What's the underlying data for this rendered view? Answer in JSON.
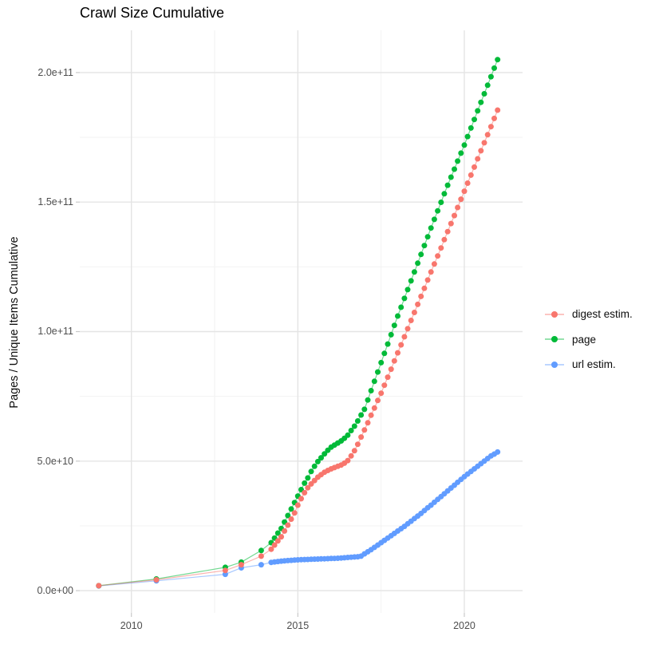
{
  "chart_data": {
    "type": "scatter",
    "title": "Crawl Size Cumulative",
    "xlabel": "",
    "ylabel": "Pages / Unique Items Cumulative",
    "y_unit": "items, values stored as multiples of 1e9",
    "grid": "on",
    "legend_position": "right",
    "x_axis": {
      "lim": [
        2008.45,
        2021.75
      ],
      "ticks": [
        {
          "year": 2010,
          "label": "2010"
        },
        {
          "year": 2015,
          "label": "2015"
        },
        {
          "year": 2020,
          "label": "2020"
        }
      ],
      "minor_years": [
        2012.5,
        2017.5
      ]
    },
    "y_axis": {
      "lim_e9": [
        -8.6,
        216.3
      ],
      "ticks": [
        {
          "value_e9": 0,
          "label": "0.0e+00"
        },
        {
          "value_e9": 50,
          "label": "5.0e+10"
        },
        {
          "value_e9": 100,
          "label": "1.0e+11"
        },
        {
          "value_e9": 150,
          "label": "1.5e+11"
        },
        {
          "value_e9": 200,
          "label": "2.0e+11"
        }
      ],
      "minor_values_e9": [
        25,
        75,
        125,
        175
      ]
    },
    "draw_order": [
      "url estim.",
      "page",
      "digest estim."
    ],
    "series": [
      {
        "name": "digest estim.",
        "color": "#F8766D",
        "points_e9": [
          [
            2009.02,
            1.9
          ],
          [
            2010.75,
            4.2
          ],
          [
            2012.82,
            7.8
          ],
          [
            2013.3,
            10.0
          ],
          [
            2013.9,
            13.3
          ],
          [
            2014.2,
            16.0
          ],
          [
            2014.3,
            17.6
          ],
          [
            2014.4,
            19.2
          ],
          [
            2014.5,
            20.8
          ],
          [
            2014.6,
            23.0
          ],
          [
            2014.7,
            25.3
          ],
          [
            2014.8,
            27.6
          ],
          [
            2014.9,
            30.0
          ],
          [
            2015.0,
            33.0
          ],
          [
            2015.1,
            35.5
          ],
          [
            2015.2,
            37.8
          ],
          [
            2015.3,
            39.7
          ],
          [
            2015.4,
            41.2
          ],
          [
            2015.5,
            42.5
          ],
          [
            2015.6,
            43.8
          ],
          [
            2015.7,
            44.8
          ],
          [
            2015.8,
            45.7
          ],
          [
            2015.9,
            46.4
          ],
          [
            2016.0,
            47.0
          ],
          [
            2016.1,
            47.5
          ],
          [
            2016.2,
            48.0
          ],
          [
            2016.3,
            48.5
          ],
          [
            2016.4,
            49.2
          ],
          [
            2016.5,
            50.2
          ],
          [
            2016.6,
            52.0
          ],
          [
            2016.7,
            54.0
          ],
          [
            2016.8,
            56.5
          ],
          [
            2016.9,
            59.3
          ],
          [
            2017.0,
            62.0
          ],
          [
            2017.1,
            64.8
          ],
          [
            2017.2,
            67.7
          ],
          [
            2017.3,
            70.5
          ],
          [
            2017.4,
            73.4
          ],
          [
            2017.5,
            76.2
          ],
          [
            2017.6,
            79.3
          ],
          [
            2017.7,
            82.4
          ],
          [
            2017.8,
            85.5
          ],
          [
            2017.9,
            88.7
          ],
          [
            2018.0,
            91.8
          ],
          [
            2018.1,
            94.9
          ],
          [
            2018.2,
            98.0
          ],
          [
            2018.3,
            101.1
          ],
          [
            2018.4,
            104.3
          ],
          [
            2018.5,
            107.4
          ],
          [
            2018.6,
            110.5
          ],
          [
            2018.7,
            113.6
          ],
          [
            2018.8,
            116.7
          ],
          [
            2018.9,
            119.9
          ],
          [
            2019.0,
            123.0
          ],
          [
            2019.1,
            126.1
          ],
          [
            2019.2,
            129.2
          ],
          [
            2019.3,
            132.3
          ],
          [
            2019.4,
            135.5
          ],
          [
            2019.5,
            138.6
          ],
          [
            2019.6,
            141.7
          ],
          [
            2019.7,
            144.8
          ],
          [
            2019.8,
            147.9
          ],
          [
            2019.9,
            151.1
          ],
          [
            2020.0,
            154.2
          ],
          [
            2020.1,
            157.3
          ],
          [
            2020.2,
            160.4
          ],
          [
            2020.3,
            163.5
          ],
          [
            2020.4,
            166.7
          ],
          [
            2020.5,
            169.8
          ],
          [
            2020.6,
            172.9
          ],
          [
            2020.7,
            176.0
          ],
          [
            2020.8,
            179.1
          ],
          [
            2020.9,
            182.3
          ],
          [
            2021.0,
            185.5
          ]
        ]
      },
      {
        "name": "page",
        "color": "#00BA38",
        "points_e9": [
          [
            2009.02,
            1.9
          ],
          [
            2010.75,
            4.5
          ],
          [
            2012.82,
            9.0
          ],
          [
            2013.3,
            11.0
          ],
          [
            2013.9,
            15.5
          ],
          [
            2014.2,
            18.5
          ],
          [
            2014.3,
            20.3
          ],
          [
            2014.4,
            22.2
          ],
          [
            2014.5,
            24.0
          ],
          [
            2014.6,
            26.5
          ],
          [
            2014.7,
            29.0
          ],
          [
            2014.8,
            31.5
          ],
          [
            2014.9,
            34.0
          ],
          [
            2015.0,
            36.5
          ],
          [
            2015.1,
            39.0
          ],
          [
            2015.2,
            41.5
          ],
          [
            2015.3,
            43.5
          ],
          [
            2015.4,
            46.0
          ],
          [
            2015.5,
            48.0
          ],
          [
            2015.6,
            49.8
          ],
          [
            2015.7,
            51.3
          ],
          [
            2015.8,
            52.8
          ],
          [
            2015.9,
            54.2
          ],
          [
            2016.0,
            55.4
          ],
          [
            2016.1,
            56.2
          ],
          [
            2016.2,
            57.0
          ],
          [
            2016.3,
            57.8
          ],
          [
            2016.4,
            58.8
          ],
          [
            2016.5,
            60.0
          ],
          [
            2016.6,
            61.8
          ],
          [
            2016.7,
            63.5
          ],
          [
            2016.8,
            65.5
          ],
          [
            2016.9,
            67.8
          ],
          [
            2017.0,
            70.0
          ],
          [
            2017.1,
            73.6
          ],
          [
            2017.2,
            77.2
          ],
          [
            2017.3,
            80.8
          ],
          [
            2017.4,
            84.4
          ],
          [
            2017.5,
            88.0
          ],
          [
            2017.6,
            91.6
          ],
          [
            2017.7,
            95.2
          ],
          [
            2017.8,
            98.8
          ],
          [
            2017.9,
            102.4
          ],
          [
            2018.0,
            106.0
          ],
          [
            2018.1,
            109.4
          ],
          [
            2018.2,
            112.8
          ],
          [
            2018.3,
            116.2
          ],
          [
            2018.4,
            119.6
          ],
          [
            2018.5,
            123.0
          ],
          [
            2018.6,
            126.4
          ],
          [
            2018.7,
            129.8
          ],
          [
            2018.8,
            133.2
          ],
          [
            2018.9,
            136.6
          ],
          [
            2019.0,
            140.0
          ],
          [
            2019.1,
            143.3
          ],
          [
            2019.2,
            146.6
          ],
          [
            2019.3,
            149.9
          ],
          [
            2019.4,
            153.2
          ],
          [
            2019.5,
            156.5
          ],
          [
            2019.6,
            159.6
          ],
          [
            2019.7,
            162.7
          ],
          [
            2019.8,
            165.8
          ],
          [
            2019.9,
            168.9
          ],
          [
            2020.0,
            172.0
          ],
          [
            2020.1,
            175.3
          ],
          [
            2020.2,
            178.6
          ],
          [
            2020.3,
            181.9
          ],
          [
            2020.4,
            185.2
          ],
          [
            2020.5,
            188.5
          ],
          [
            2020.6,
            191.8
          ],
          [
            2020.7,
            195.1
          ],
          [
            2020.8,
            198.4
          ],
          [
            2020.9,
            201.7
          ],
          [
            2021.0,
            205.0
          ]
        ]
      },
      {
        "name": "url estim.",
        "color": "#619CFF",
        "points_e9": [
          [
            2009.02,
            1.8
          ],
          [
            2010.75,
            3.8
          ],
          [
            2012.82,
            6.3
          ],
          [
            2013.3,
            8.8
          ],
          [
            2013.9,
            10.0
          ],
          [
            2014.2,
            10.9
          ],
          [
            2014.3,
            11.1
          ],
          [
            2014.4,
            11.25
          ],
          [
            2014.5,
            11.4
          ],
          [
            2014.6,
            11.5
          ],
          [
            2014.7,
            11.6
          ],
          [
            2014.8,
            11.7
          ],
          [
            2014.9,
            11.8
          ],
          [
            2015.0,
            11.9
          ],
          [
            2015.1,
            11.95
          ],
          [
            2015.2,
            12.0
          ],
          [
            2015.3,
            12.05
          ],
          [
            2015.4,
            12.1
          ],
          [
            2015.5,
            12.15
          ],
          [
            2015.6,
            12.2
          ],
          [
            2015.7,
            12.25
          ],
          [
            2015.8,
            12.3
          ],
          [
            2015.9,
            12.35
          ],
          [
            2016.0,
            12.4
          ],
          [
            2016.1,
            12.45
          ],
          [
            2016.2,
            12.5
          ],
          [
            2016.3,
            12.6
          ],
          [
            2016.4,
            12.7
          ],
          [
            2016.5,
            12.8
          ],
          [
            2016.6,
            12.9
          ],
          [
            2016.7,
            13.0
          ],
          [
            2016.8,
            13.1
          ],
          [
            2016.9,
            13.3
          ],
          [
            2017.0,
            14.2
          ],
          [
            2017.1,
            15.0
          ],
          [
            2017.2,
            15.8
          ],
          [
            2017.3,
            16.7
          ],
          [
            2017.4,
            17.6
          ],
          [
            2017.5,
            18.5
          ],
          [
            2017.6,
            19.4
          ],
          [
            2017.7,
            20.3
          ],
          [
            2017.8,
            21.2
          ],
          [
            2017.9,
            22.1
          ],
          [
            2018.0,
            23.0
          ],
          [
            2018.1,
            23.9
          ],
          [
            2018.2,
            24.8
          ],
          [
            2018.3,
            25.8
          ],
          [
            2018.4,
            26.8
          ],
          [
            2018.5,
            27.8
          ],
          [
            2018.6,
            28.8
          ],
          [
            2018.7,
            29.8
          ],
          [
            2018.8,
            30.9
          ],
          [
            2018.9,
            32.0
          ],
          [
            2019.0,
            33.0
          ],
          [
            2019.1,
            34.1
          ],
          [
            2019.2,
            35.2
          ],
          [
            2019.3,
            36.3
          ],
          [
            2019.4,
            37.4
          ],
          [
            2019.5,
            38.5
          ],
          [
            2019.6,
            39.6
          ],
          [
            2019.7,
            40.7
          ],
          [
            2019.8,
            41.8
          ],
          [
            2019.9,
            42.9
          ],
          [
            2020.0,
            44.0
          ],
          [
            2020.1,
            45.0
          ],
          [
            2020.2,
            46.0
          ],
          [
            2020.3,
            47.0
          ],
          [
            2020.4,
            48.0
          ],
          [
            2020.5,
            49.0
          ],
          [
            2020.6,
            50.0
          ],
          [
            2020.7,
            51.0
          ],
          [
            2020.8,
            52.0
          ],
          [
            2020.9,
            52.7
          ],
          [
            2021.0,
            53.5
          ]
        ]
      }
    ],
    "legend": {
      "items": [
        {
          "label": "digest estim.",
          "color": "#F8766D"
        },
        {
          "label": "page",
          "color": "#00BA38"
        },
        {
          "label": "url estim.",
          "color": "#619CFF"
        }
      ]
    },
    "style_colors": {
      "major_grid": "#E4E4E4",
      "minor_grid": "#F1F1F1",
      "tick_mark": "#C9C9C9",
      "tick_text": "#4d4d4d"
    }
  }
}
